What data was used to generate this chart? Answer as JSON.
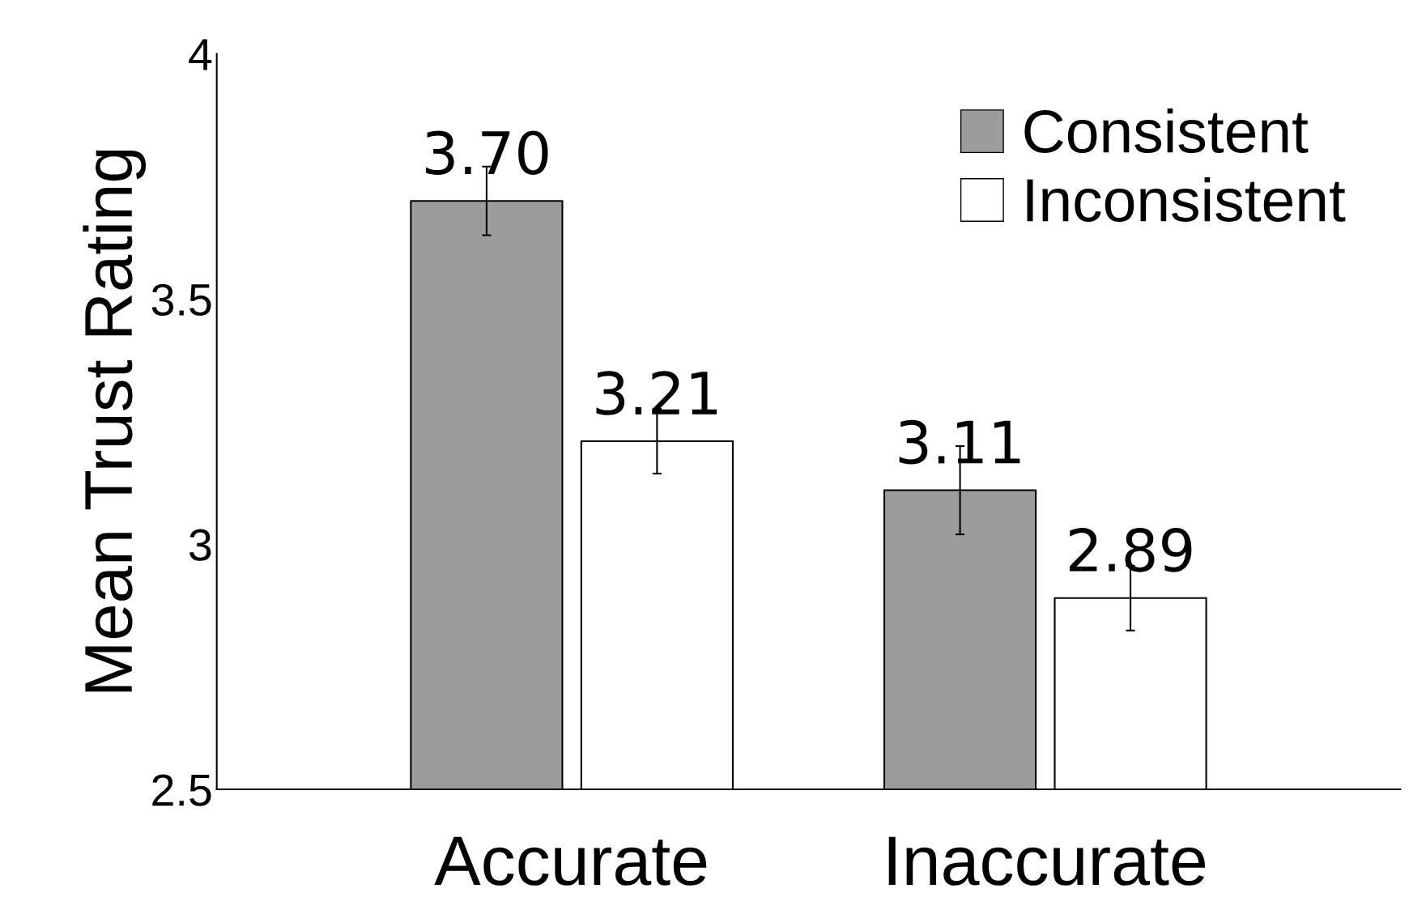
{
  "chart_data": {
    "type": "bar",
    "ylabel": "Mean Trust Rating",
    "categories": [
      "Accurate",
      "Inaccurate"
    ],
    "series": [
      {
        "name": "Consistent",
        "color": "#9c9c9c",
        "values": [
          3.7,
          3.11
        ],
        "errors": [
          0.07,
          0.09
        ],
        "value_labels": [
          "3.70",
          "3.11"
        ]
      },
      {
        "name": "Inconsistent",
        "color": "#ffffff",
        "values": [
          3.21,
          2.89
        ],
        "errors": [
          0.066,
          0.066
        ],
        "value_labels": [
          "3.21",
          "2.89"
        ]
      }
    ],
    "ylim": [
      2.5,
      4
    ],
    "yticks": [
      2.5,
      3,
      3.5,
      4
    ],
    "grid": false,
    "legend": "top right"
  }
}
